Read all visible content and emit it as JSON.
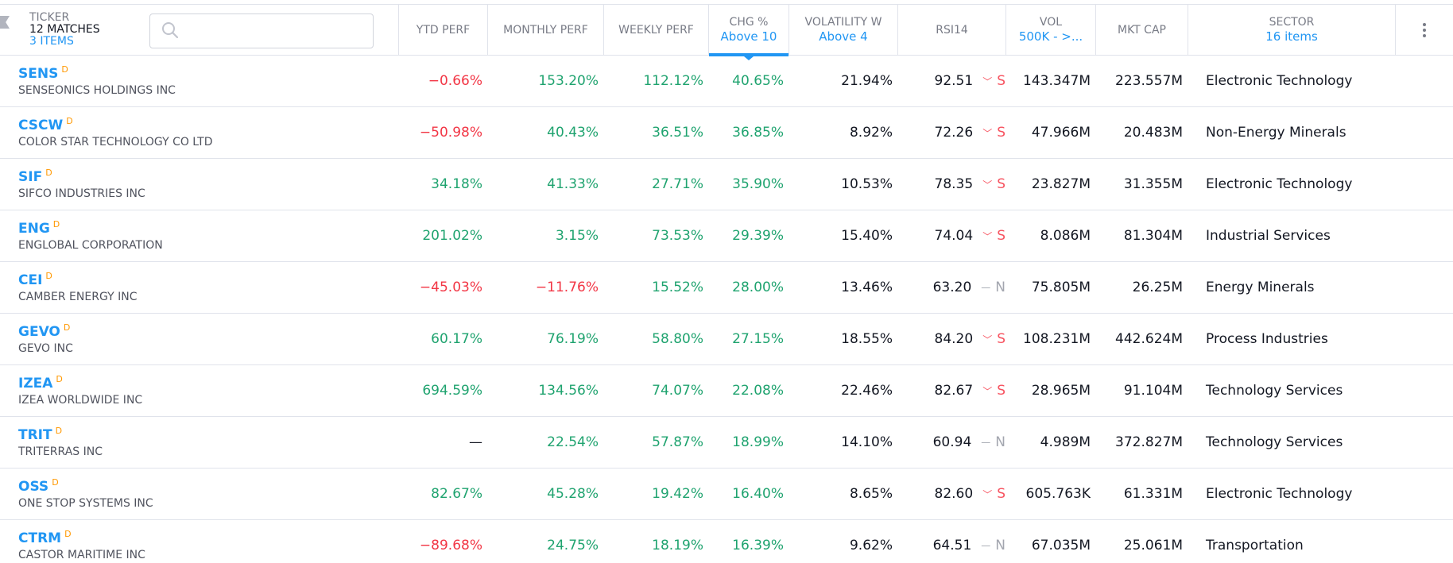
{
  "header": {
    "ticker": {
      "label": "TICKER",
      "matches": "12 MATCHES",
      "items": "3 ITEMS"
    },
    "search": {
      "placeholder": "",
      "value": ""
    },
    "columns": [
      {
        "key": "ytd",
        "label": "YTD PERF",
        "filter": ""
      },
      {
        "key": "monthly",
        "label": "MONTHLY PERF",
        "filter": ""
      },
      {
        "key": "weekly",
        "label": "WEEKLY PERF",
        "filter": ""
      },
      {
        "key": "chg",
        "label": "CHG %",
        "filter": "Above 10",
        "active": true
      },
      {
        "key": "volatility",
        "label": "VOLATILITY W",
        "filter": "Above 4"
      },
      {
        "key": "rsi",
        "label": "RSI14",
        "filter": ""
      },
      {
        "key": "vol",
        "label": "VOL",
        "filter": "500K - >..."
      },
      {
        "key": "mktcap",
        "label": "MKT CAP",
        "filter": ""
      },
      {
        "key": "sector",
        "label": "SECTOR",
        "filter": "16 items"
      }
    ],
    "menu_icon": "more-vertical-icon"
  },
  "colors": {
    "accent": "#2196f3",
    "positive": "#1fa36f",
    "negative": "#f23645",
    "delayed_badge": "#ff9800",
    "sell": "#f7525f",
    "neutral_rating": "#a3a6af"
  },
  "rows": [
    {
      "symbol": "SENS",
      "badge": "D",
      "name": "SENSEONICS HOLDINGS INC",
      "ytd": "−0.66%",
      "ytd_sign": "neg",
      "monthly": "153.20%",
      "monthly_sign": "pos",
      "weekly": "112.12%",
      "weekly_sign": "pos",
      "chg": "40.65%",
      "volatility": "21.94%",
      "rsi": "92.51",
      "rating_icon": "﹀",
      "rating": "S",
      "rating_type": "sell",
      "vol": "143.347M",
      "mktcap": "223.557M",
      "sector": "Electronic Technology"
    },
    {
      "symbol": "CSCW",
      "badge": "D",
      "name": "COLOR STAR TECHNOLOGY CO LTD",
      "ytd": "−50.98%",
      "ytd_sign": "neg",
      "monthly": "40.43%",
      "monthly_sign": "pos",
      "weekly": "36.51%",
      "weekly_sign": "pos",
      "chg": "36.85%",
      "volatility": "8.92%",
      "rsi": "72.26",
      "rating_icon": "﹀",
      "rating": "S",
      "rating_type": "sell",
      "vol": "47.966M",
      "mktcap": "20.483M",
      "sector": "Non-Energy Minerals"
    },
    {
      "symbol": "SIF",
      "badge": "D",
      "name": "SIFCO INDUSTRIES INC",
      "ytd": "34.18%",
      "ytd_sign": "pos",
      "monthly": "41.33%",
      "monthly_sign": "pos",
      "weekly": "27.71%",
      "weekly_sign": "pos",
      "chg": "35.90%",
      "volatility": "10.53%",
      "rsi": "78.35",
      "rating_icon": "﹀",
      "rating": "S",
      "rating_type": "sell",
      "vol": "23.827M",
      "mktcap": "31.355M",
      "sector": "Electronic Technology"
    },
    {
      "symbol": "ENG",
      "badge": "D",
      "name": "ENGLOBAL CORPORATION",
      "ytd": "201.02%",
      "ytd_sign": "pos",
      "monthly": "3.15%",
      "monthly_sign": "pos",
      "weekly": "73.53%",
      "weekly_sign": "pos",
      "chg": "29.39%",
      "volatility": "15.40%",
      "rsi": "74.04",
      "rating_icon": "﹀",
      "rating": "S",
      "rating_type": "sell",
      "vol": "8.086M",
      "mktcap": "81.304M",
      "sector": "Industrial Services"
    },
    {
      "symbol": "CEI",
      "badge": "D",
      "name": "CAMBER ENERGY INC",
      "ytd": "−45.03%",
      "ytd_sign": "neg",
      "monthly": "−11.76%",
      "monthly_sign": "neg",
      "weekly": "15.52%",
      "weekly_sign": "pos",
      "chg": "28.00%",
      "volatility": "13.46%",
      "rsi": "63.20",
      "rating_icon": "—",
      "rating": "N",
      "rating_type": "neutr",
      "vol": "75.805M",
      "mktcap": "26.25M",
      "sector": "Energy Minerals"
    },
    {
      "symbol": "GEVO",
      "badge": "D",
      "name": "GEVO INC",
      "ytd": "60.17%",
      "ytd_sign": "pos",
      "monthly": "76.19%",
      "monthly_sign": "pos",
      "weekly": "58.80%",
      "weekly_sign": "pos",
      "chg": "27.15%",
      "volatility": "18.55%",
      "rsi": "84.20",
      "rating_icon": "﹀",
      "rating": "S",
      "rating_type": "sell",
      "vol": "108.231M",
      "mktcap": "442.624M",
      "sector": "Process Industries"
    },
    {
      "symbol": "IZEA",
      "badge": "D",
      "name": "IZEA WORLDWIDE INC",
      "ytd": "694.59%",
      "ytd_sign": "pos",
      "monthly": "134.56%",
      "monthly_sign": "pos",
      "weekly": "74.07%",
      "weekly_sign": "pos",
      "chg": "22.08%",
      "volatility": "22.46%",
      "rsi": "82.67",
      "rating_icon": "﹀",
      "rating": "S",
      "rating_type": "sell",
      "vol": "28.965M",
      "mktcap": "91.104M",
      "sector": "Technology Services"
    },
    {
      "symbol": "TRIT",
      "badge": "D",
      "name": "TRITERRAS INC",
      "ytd": "—",
      "ytd_sign": "neutral",
      "monthly": "22.54%",
      "monthly_sign": "pos",
      "weekly": "57.87%",
      "weekly_sign": "pos",
      "chg": "18.99%",
      "volatility": "14.10%",
      "rsi": "60.94",
      "rating_icon": "—",
      "rating": "N",
      "rating_type": "neutr",
      "vol": "4.989M",
      "mktcap": "372.827M",
      "sector": "Technology Services"
    },
    {
      "symbol": "OSS",
      "badge": "D",
      "name": "ONE STOP SYSTEMS INC",
      "ytd": "82.67%",
      "ytd_sign": "pos",
      "monthly": "45.28%",
      "monthly_sign": "pos",
      "weekly": "19.42%",
      "weekly_sign": "pos",
      "chg": "16.40%",
      "volatility": "8.65%",
      "rsi": "82.60",
      "rating_icon": "﹀",
      "rating": "S",
      "rating_type": "sell",
      "vol": "605.763K",
      "mktcap": "61.331M",
      "sector": "Electronic Technology"
    },
    {
      "symbol": "CTRM",
      "badge": "D",
      "name": "CASTOR MARITIME INC",
      "ytd": "−89.68%",
      "ytd_sign": "neg",
      "monthly": "24.75%",
      "monthly_sign": "pos",
      "weekly": "18.19%",
      "weekly_sign": "pos",
      "chg": "16.39%",
      "volatility": "9.62%",
      "rsi": "64.51",
      "rating_icon": "—",
      "rating": "N",
      "rating_type": "neutr",
      "vol": "67.035M",
      "mktcap": "25.061M",
      "sector": "Transportation"
    }
  ]
}
